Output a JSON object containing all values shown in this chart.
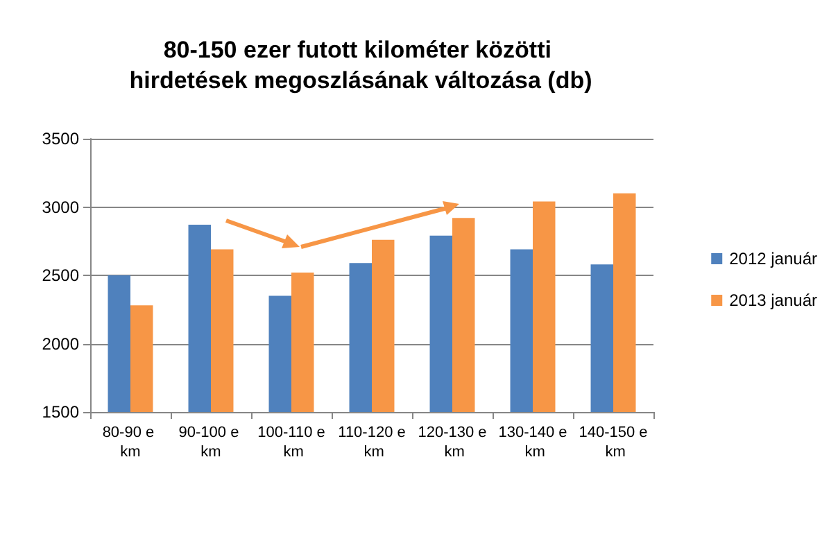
{
  "chart_data": {
    "type": "bar",
    "title": "80-150 ezer futott kilométer közötti hirdetések megoszlásának változása (db)",
    "categories": [
      "80-90 e km",
      "90-100 e km",
      "100-110 e km",
      "110-120 e km",
      "120-130 e km",
      "130-140 e km",
      "140-150 e km"
    ],
    "series": [
      {
        "name": "2012 január",
        "color": "#4f81bd",
        "values": [
          2500,
          2870,
          2350,
          2590,
          2790,
          2690,
          2580
        ]
      },
      {
        "name": "2013 január",
        "color": "#f79646",
        "values": [
          2280,
          2690,
          2520,
          2760,
          2920,
          3040,
          3100
        ]
      }
    ],
    "ylim": [
      1500,
      3500
    ],
    "yticks": [
      1500,
      2000,
      2500,
      3000,
      3500
    ],
    "grid": "y",
    "legend": "right"
  }
}
